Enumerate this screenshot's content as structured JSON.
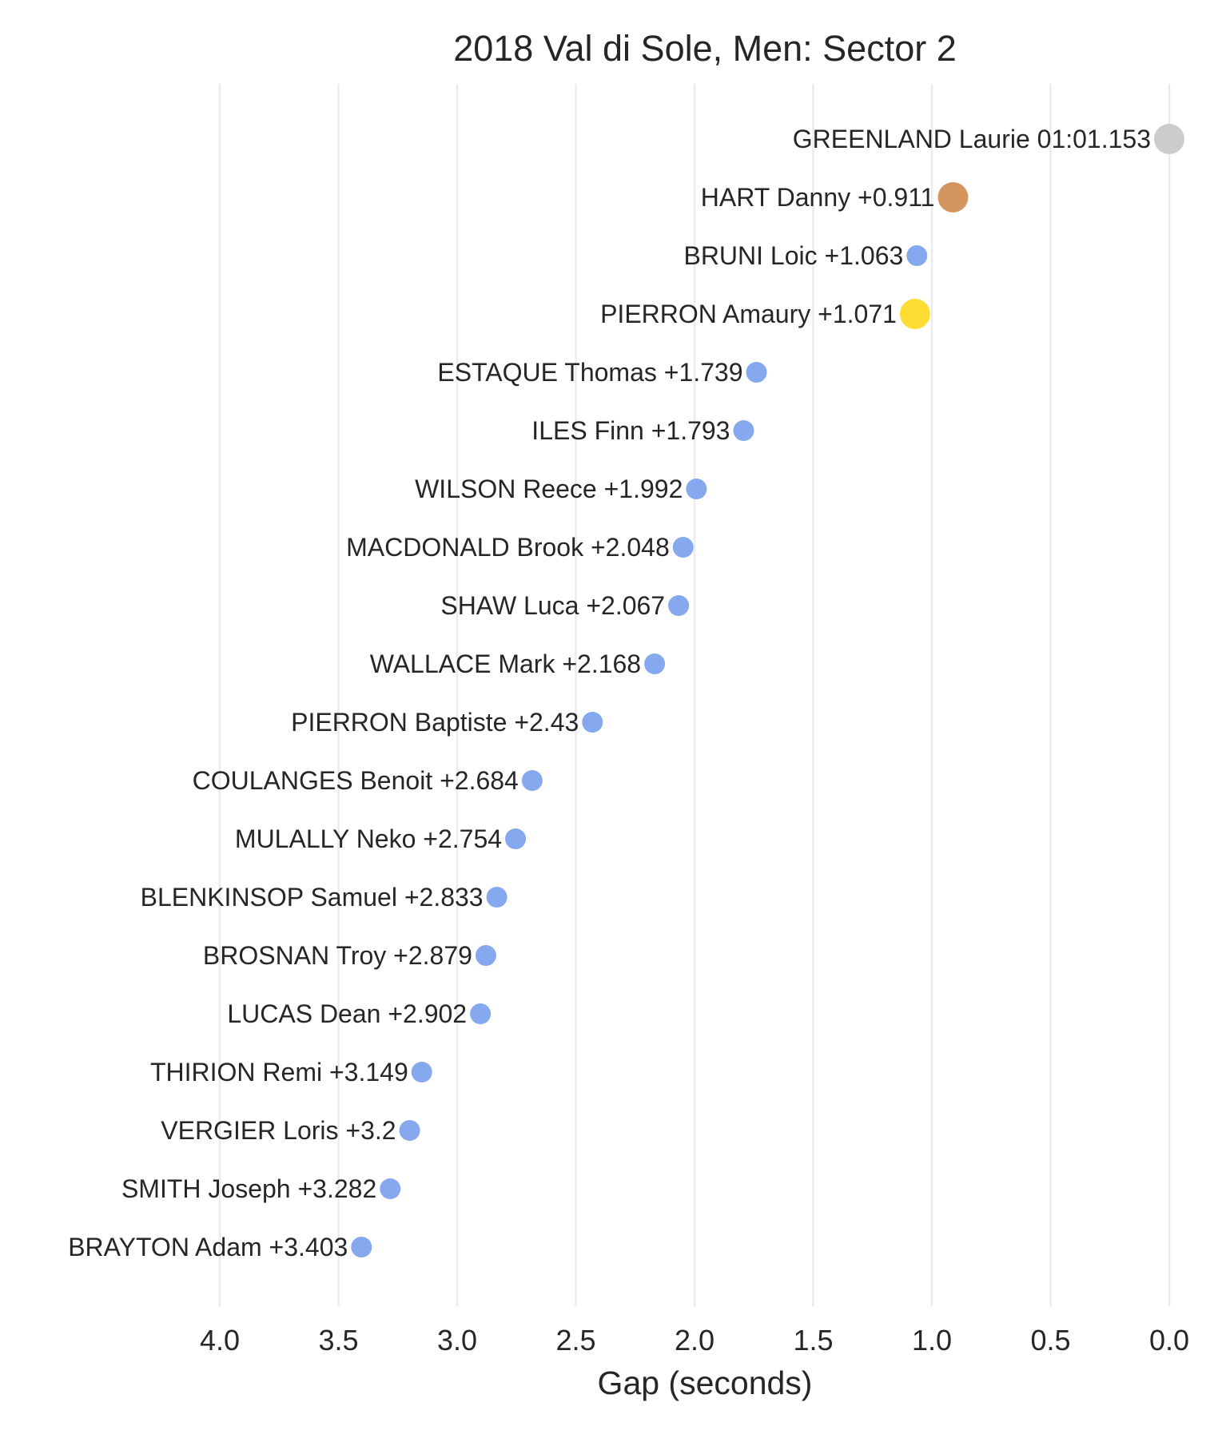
{
  "chart_data": {
    "type": "scatter",
    "title": "2018 Val di Sole, Men: Sector 2",
    "xlabel": "Gap (seconds)",
    "ylabel": "",
    "xlim": [
      4.0,
      0.0
    ],
    "x_inverted": true,
    "x_ticks": [
      "4.0",
      "3.5",
      "3.0",
      "2.5",
      "2.0",
      "1.5",
      "1.0",
      "0.5",
      "0.0"
    ],
    "grid": "vertical",
    "legend": "none",
    "colors": {
      "leader": "#cccccc",
      "second": "#d4965e",
      "highlight": "#ffdd33",
      "default": "#85a8ee"
    },
    "points": [
      {
        "label": "GREENLAND Laurie 01:01.153",
        "x": 0.0,
        "color": "leader",
        "size": "large"
      },
      {
        "label": "HART Danny +0.911",
        "x": 0.911,
        "color": "second",
        "size": "large"
      },
      {
        "label": "BRUNI Loic +1.063",
        "x": 1.063,
        "color": "default",
        "size": "small"
      },
      {
        "label": "PIERRON Amaury +1.071",
        "x": 1.071,
        "color": "highlight",
        "size": "large"
      },
      {
        "label": "ESTAQUE Thomas +1.739",
        "x": 1.739,
        "color": "default",
        "size": "small"
      },
      {
        "label": "ILES Finn +1.793",
        "x": 1.793,
        "color": "default",
        "size": "small"
      },
      {
        "label": "WILSON Reece +1.992",
        "x": 1.992,
        "color": "default",
        "size": "small"
      },
      {
        "label": "MACDONALD Brook +2.048",
        "x": 2.048,
        "color": "default",
        "size": "small"
      },
      {
        "label": "SHAW Luca +2.067",
        "x": 2.067,
        "color": "default",
        "size": "small"
      },
      {
        "label": "WALLACE Mark +2.168",
        "x": 2.168,
        "color": "default",
        "size": "small"
      },
      {
        "label": "PIERRON Baptiste +2.43",
        "x": 2.43,
        "color": "default",
        "size": "small"
      },
      {
        "label": "COULANGES Benoit +2.684",
        "x": 2.684,
        "color": "default",
        "size": "small"
      },
      {
        "label": "MULALLY Neko +2.754",
        "x": 2.754,
        "color": "default",
        "size": "small"
      },
      {
        "label": "BLENKINSOP Samuel +2.833",
        "x": 2.833,
        "color": "default",
        "size": "small"
      },
      {
        "label": "BROSNAN Troy +2.879",
        "x": 2.879,
        "color": "default",
        "size": "small"
      },
      {
        "label": "LUCAS Dean +2.902",
        "x": 2.902,
        "color": "default",
        "size": "small"
      },
      {
        "label": "THIRION Remi +3.149",
        "x": 3.149,
        "color": "default",
        "size": "small"
      },
      {
        "label": "VERGIER Loris +3.2",
        "x": 3.2,
        "color": "default",
        "size": "small"
      },
      {
        "label": "SMITH Joseph +3.282",
        "x": 3.282,
        "color": "default",
        "size": "small"
      },
      {
        "label": "BRAYTON Adam +3.403",
        "x": 3.403,
        "color": "default",
        "size": "small"
      }
    ]
  }
}
